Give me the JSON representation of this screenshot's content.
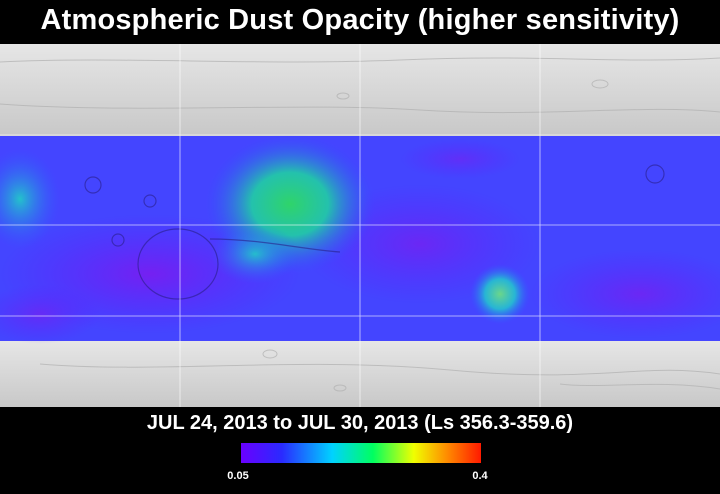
{
  "title": "Atmospheric Dust Opacity (higher sensitivity)",
  "date_range": "JUL 24, 2013 to JUL 30, 2013 (Ls 356.3-359.6)",
  "map": {
    "overlay_value_range": [
      0.05,
      0.4
    ]
  },
  "legend": {
    "min_label": "0.05",
    "max_label": "0.4",
    "colors": [
      "#6a00ff",
      "#2a2aff",
      "#00d2ff",
      "#00ff60",
      "#f0ff00",
      "#ff8a00",
      "#ff1a00"
    ]
  }
}
